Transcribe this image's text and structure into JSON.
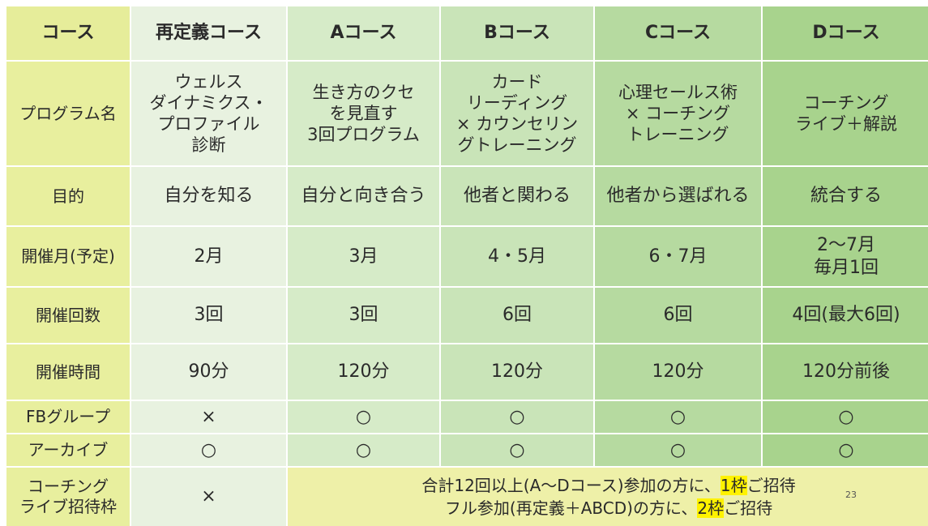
{
  "header": {
    "label": "コース",
    "courses": [
      "再定義コース",
      "Aコース",
      "Bコース",
      "Cコース",
      "Dコース"
    ]
  },
  "rows": [
    {
      "label": "プログラム名",
      "cells": [
        "ウェルス\nダイナミクス・\nプロファイル\n診断",
        "生き方のクセ\nを見直す\n3回プログラム",
        "カード\nリーディング\n× カウンセリン\nグトレーニング",
        "心理セールス術\n× コーチング\nトレーニング",
        "コーチング\nライブ＋解説"
      ]
    },
    {
      "label": "目的",
      "cells": [
        "自分を知る",
        "自分と向き合う",
        "他者と関わる",
        "他者から選ばれる",
        "統合する"
      ]
    },
    {
      "label": "開催月(予定)",
      "cells": [
        "2月",
        "3月",
        "4・5月",
        "6・7月",
        "2〜7月\n毎月1回"
      ]
    },
    {
      "label": "開催回数",
      "cells": [
        "3回",
        "3回",
        "6回",
        "6回",
        "4回(最大6回)"
      ]
    },
    {
      "label": "開催時間",
      "cells": [
        "90分",
        "120分",
        "120分",
        "120分",
        "120分前後"
      ]
    },
    {
      "label": "FBグループ",
      "cells": [
        "×",
        "○",
        "○",
        "○",
        "○"
      ]
    },
    {
      "label": "アーカイブ",
      "cells": [
        "○",
        "○",
        "○",
        "○",
        "○"
      ]
    }
  ],
  "invite": {
    "label": "コーチング\nライブ招待枠",
    "redefine": "×",
    "line1_pre": "合計12回以上(A〜Dコース)参加の方に、",
    "line1_hl": "1枠",
    "line1_post": "ご招待",
    "line2_pre": "フル参加(再定義＋ABCD)の方に、",
    "line2_hl": "2枠",
    "line2_post": "ご招待"
  },
  "page_number": "23",
  "colors": {
    "row_header": "#e8ef9e",
    "col_redefine": "#e8f2e0",
    "col_a": "#d6ebc8",
    "col_b": "#c9e4b8",
    "col_c": "#b6daa0",
    "col_d": "#a8d38d",
    "highlight": "#fff200"
  }
}
